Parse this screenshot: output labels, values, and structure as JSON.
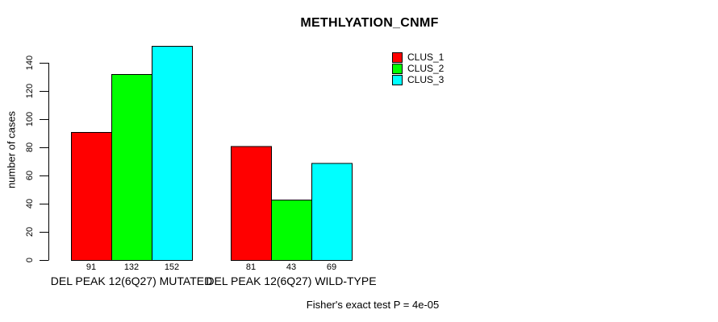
{
  "chart_data": {
    "type": "bar",
    "title": "METHLYATION_CNMF",
    "ylabel": "number of cases",
    "xlabel": "",
    "ylim": [
      0,
      140
    ],
    "yticks": [
      0,
      20,
      40,
      60,
      80,
      100,
      120,
      140
    ],
    "grid": false,
    "categories": [
      "DEL PEAK 12(6Q27) MUTATED",
      "DEL PEAK 12(6Q27) WILD-TYPE"
    ],
    "series": [
      {
        "name": "CLUS_1",
        "color": "#ff0000",
        "values": [
          91,
          81
        ]
      },
      {
        "name": "CLUS_2",
        "color": "#00ff00",
        "values": [
          132,
          43
        ]
      },
      {
        "name": "CLUS_3",
        "color": "#00ffff",
        "values": [
          152,
          69
        ]
      }
    ],
    "bar_value_labels": [
      [
        91,
        132,
        152
      ],
      [
        81,
        43,
        69
      ]
    ],
    "legend": {
      "position": "top-right",
      "entries": [
        "CLUS_1",
        "CLUS_2",
        "CLUS_3"
      ]
    },
    "annotation": "Fisher's exact test P = 4e-05",
    "bar_border_color": "#000000",
    "text_color": "#000000",
    "background": "#ffffff"
  }
}
